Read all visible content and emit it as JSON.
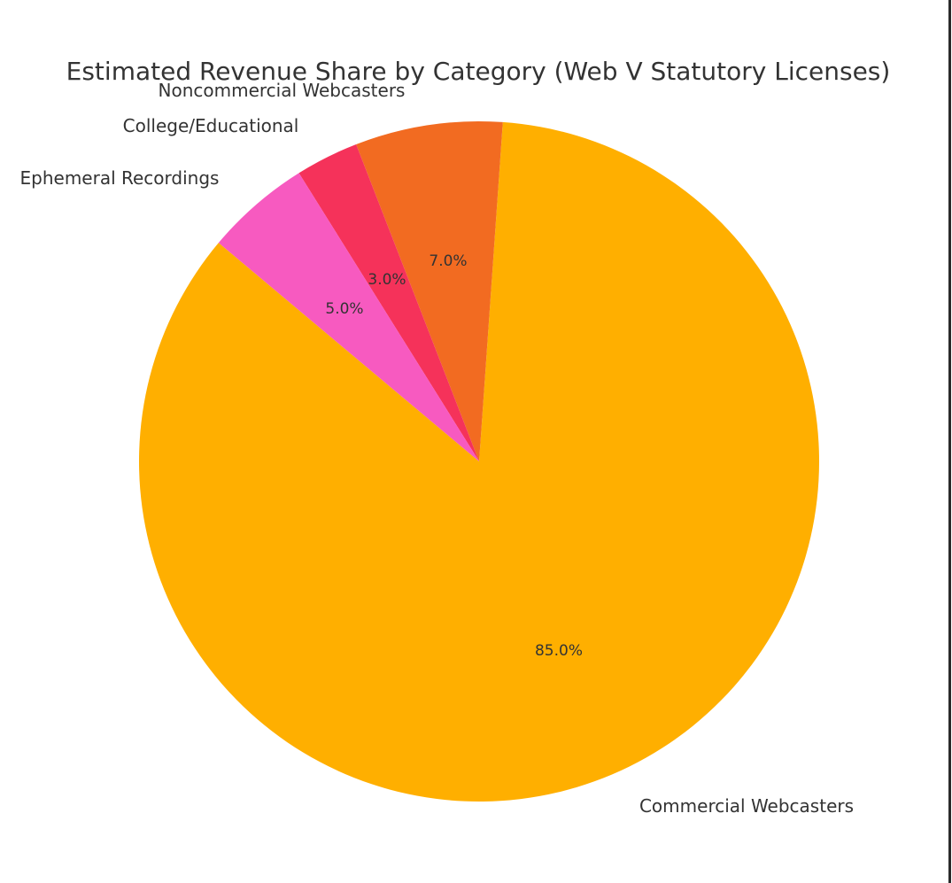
{
  "chart_data": {
    "type": "pie",
    "title": "Estimated Revenue Share by Category (Web V Statutory Licenses)",
    "categories": [
      "Commercial Webcasters",
      "Noncommercial Webcasters",
      "College/Educational",
      "Ephemeral Recordings"
    ],
    "values": [
      85.0,
      7.0,
      3.0,
      5.0
    ],
    "value_labels": [
      "85.0%",
      "7.0%",
      "3.0%",
      "5.0%"
    ],
    "colors": [
      "#FFAF00",
      "#F26B21",
      "#F5325A",
      "#F75AC0"
    ],
    "start_angle_deg": 140,
    "direction": "counterclockwise",
    "legend": "none"
  },
  "labels": {
    "title": "Estimated Revenue Share by Category (Web V Statutory Licenses)",
    "commercial": "Commercial Webcasters",
    "noncommercial": "Noncommercial Webcasters",
    "college": "College/Educational",
    "ephemeral": "Ephemeral Recordings",
    "pct_commercial": "85.0%",
    "pct_noncommercial": "7.0%",
    "pct_college": "3.0%",
    "pct_ephemeral": "5.0%"
  }
}
